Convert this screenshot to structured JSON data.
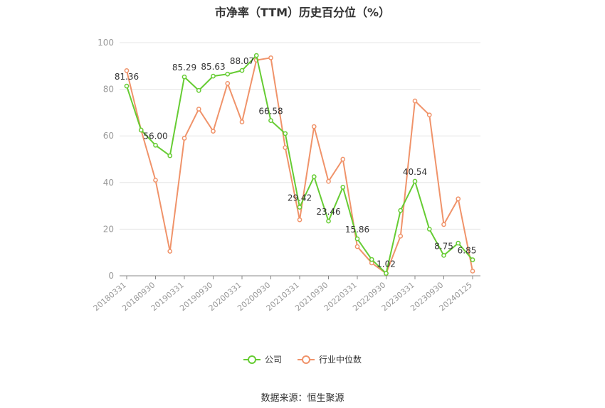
{
  "title": "市净率（TTM）历史百分位（%）",
  "source": "数据来源：恒生聚源",
  "colors": {
    "company": "#66cc33",
    "industry": "#f0936a",
    "grid": "#e5e5e5",
    "axis": "#999999"
  },
  "chart_data": {
    "type": "line",
    "title": "市净率（TTM）历史百分位（%）",
    "xlabel": "",
    "ylabel": "",
    "ylim": [
      0,
      100
    ],
    "yticks": [
      0,
      20,
      40,
      60,
      80,
      100
    ],
    "grid": true,
    "legend_position": "bottom",
    "x": [
      "20180331",
      "20180630",
      "20180930",
      "20181231",
      "20190331",
      "20190630",
      "20190930",
      "20191231",
      "20200331",
      "20200630",
      "20200930",
      "20201231",
      "20210331",
      "20210630",
      "20210930",
      "20211231",
      "20220331",
      "20220630",
      "20220930",
      "20221231",
      "20230331",
      "20230630",
      "20230930",
      "20231231",
      "20240125"
    ],
    "x_tick_labels": [
      "20180331",
      "20180930",
      "20190331",
      "20190930",
      "20200331",
      "20200930",
      "20210331",
      "20210930",
      "20220331",
      "20220930",
      "20230331",
      "20230930",
      "20240125"
    ],
    "series": [
      {
        "name": "公司",
        "values": [
          81.36,
          62.5,
          56.0,
          51.5,
          85.29,
          79.5,
          85.63,
          86.5,
          88.07,
          94.5,
          66.58,
          61.0,
          29.42,
          42.5,
          23.46,
          38.0,
          15.86,
          7.0,
          1.02,
          28.0,
          40.54,
          20.0,
          8.75,
          14.0,
          6.85
        ],
        "data_labels": {
          "0": "81.36",
          "2": "56.00",
          "4": "85.29",
          "6": "85.63",
          "8": "88.07",
          "10": "66.58",
          "12": "29.42",
          "14": "23.46",
          "16": "15.86",
          "18": "1.02",
          "20": "40.54",
          "22": "8.75",
          "24": "6.85"
        }
      },
      {
        "name": "行业中位数",
        "values": [
          88.0,
          62.5,
          41.0,
          10.5,
          59.0,
          71.5,
          62.0,
          82.5,
          66.0,
          92.5,
          93.5,
          55.0,
          24.0,
          64.0,
          40.5,
          50.0,
          12.5,
          5.5,
          1.0,
          17.0,
          75.0,
          69.0,
          22.0,
          33.0,
          2.0
        ]
      }
    ]
  }
}
